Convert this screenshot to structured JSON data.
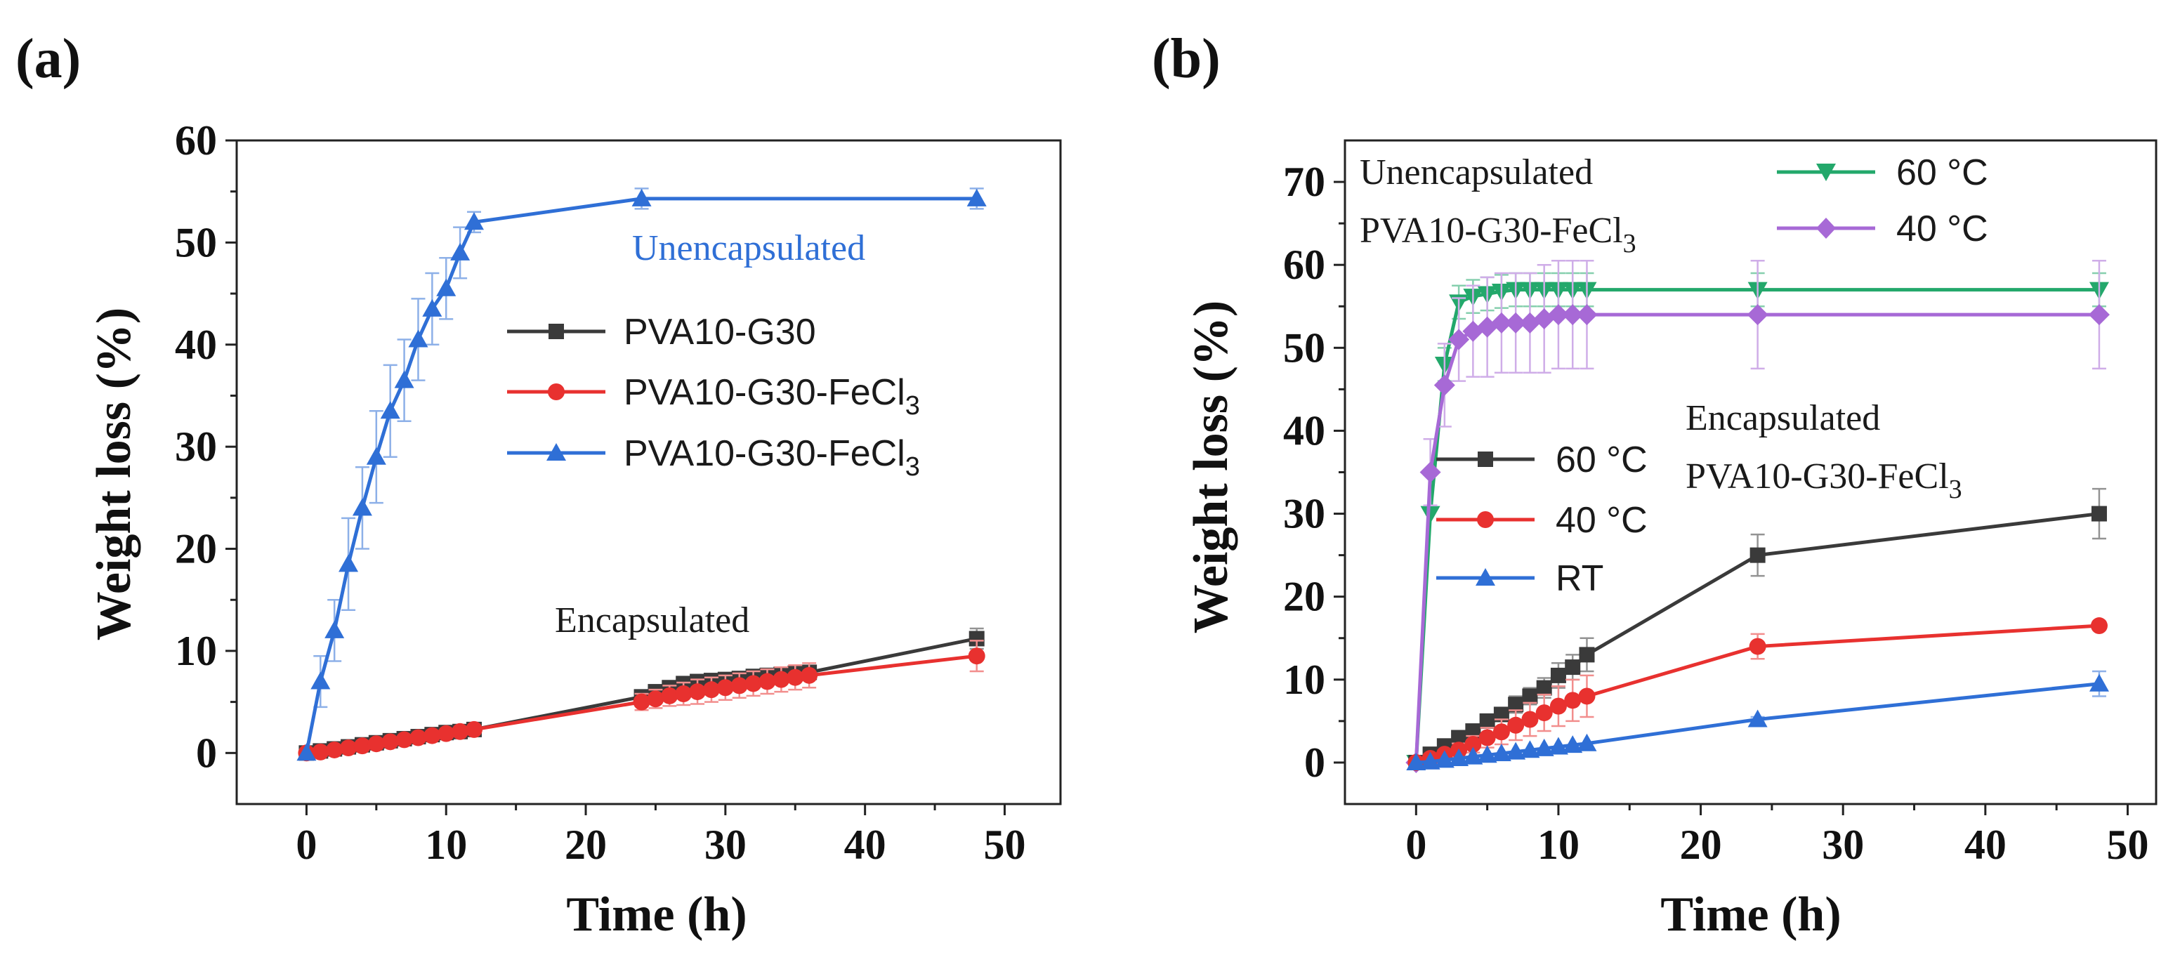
{
  "chart_data": [
    {
      "panel_label": "(a)",
      "type": "line",
      "xlabel": "Time (h)",
      "ylabel": "Weight loss (%)",
      "xlim": [
        -5,
        54
      ],
      "ylim": [
        -5,
        60
      ],
      "xticks": [
        0,
        10,
        20,
        30,
        40,
        50
      ],
      "yticks": [
        0,
        10,
        20,
        30,
        40,
        50,
        60
      ],
      "grid": false,
      "legend_position": "center-right",
      "annotations": [
        {
          "text": "Unencapsulated",
          "color": "#2f6fd6"
        },
        {
          "text": "Encapsulated",
          "color": "#1a1a1a"
        }
      ],
      "series": [
        {
          "name": "PVA10-G30",
          "color": "#3a3a3a",
          "marker": "square",
          "x": [
            0,
            1,
            2,
            3,
            4,
            5,
            6,
            7,
            8,
            9,
            10,
            11,
            12,
            24,
            25,
            26,
            27,
            28,
            29,
            30,
            31,
            32,
            33,
            34,
            35,
            36,
            48
          ],
          "y": [
            0,
            0.2,
            0.4,
            0.6,
            0.8,
            1.0,
            1.2,
            1.4,
            1.6,
            1.8,
            2.0,
            2.1,
            2.3,
            5.5,
            6.0,
            6.4,
            6.8,
            7.0,
            7.1,
            7.2,
            7.3,
            7.5,
            7.6,
            7.7,
            7.8,
            7.9,
            11.2
          ],
          "err": [
            0,
            0,
            0,
            0,
            0,
            0,
            0,
            0,
            0,
            0,
            0,
            0,
            0,
            0.6,
            0.6,
            0.6,
            0.6,
            0.6,
            0.6,
            0.6,
            0.6,
            0.6,
            0.6,
            0.6,
            0.6,
            0.6,
            1.0
          ]
        },
        {
          "name": "PVA10-G30-FeCl3",
          "legend_text": "PVA10-G30-FeCl",
          "legend_sub": "3",
          "color": "#e8312f",
          "marker": "circle",
          "x": [
            0,
            1,
            2,
            3,
            4,
            5,
            6,
            7,
            8,
            9,
            10,
            11,
            12,
            24,
            25,
            26,
            27,
            28,
            29,
            30,
            31,
            32,
            33,
            34,
            35,
            36,
            48
          ],
          "y": [
            0,
            0.1,
            0.3,
            0.5,
            0.7,
            0.9,
            1.1,
            1.3,
            1.5,
            1.7,
            1.9,
            2.1,
            2.3,
            5.0,
            5.3,
            5.6,
            5.8,
            6.0,
            6.2,
            6.4,
            6.6,
            6.8,
            7.0,
            7.2,
            7.4,
            7.6,
            9.5
          ],
          "err": [
            0,
            0,
            0,
            0,
            0,
            0,
            0,
            0,
            0,
            0,
            0,
            0,
            0,
            0.8,
            0.9,
            1.0,
            1.1,
            1.2,
            1.2,
            1.2,
            1.2,
            1.2,
            1.2,
            1.2,
            1.2,
            1.2,
            1.5
          ]
        },
        {
          "name": "PVA10-G30-FeCl3 (unencapsulated)",
          "legend_text": "PVA10-G30-FeCl",
          "legend_sub": "3",
          "color": "#2f6fd6",
          "marker": "triangle-up",
          "x": [
            0,
            1,
            2,
            3,
            4,
            5,
            6,
            7,
            8,
            9,
            10,
            11,
            12,
            24,
            48
          ],
          "y": [
            0,
            7,
            12,
            18.5,
            24,
            29,
            33.5,
            36.5,
            40.5,
            43.5,
            45.5,
            49,
            52,
            54.3,
            54.3
          ],
          "err": [
            0,
            2.5,
            3,
            4.5,
            4,
            4.5,
            4.5,
            4,
            4,
            3.5,
            3,
            2.5,
            1,
            1,
            1
          ]
        }
      ]
    },
    {
      "panel_label": "(b)",
      "type": "line",
      "xlabel": "Time (h)",
      "ylabel": "Weight loss (%)",
      "xlim": [
        -5,
        52
      ],
      "ylim": [
        -5,
        75
      ],
      "xticks": [
        0,
        10,
        20,
        30,
        40,
        50
      ],
      "yticks": [
        0,
        10,
        20,
        30,
        40,
        50,
        60,
        70
      ],
      "grid": false,
      "legend_position": "top-right and center-left",
      "annotations": [
        {
          "text": "Unencapsulated",
          "color": "#1a1a1a"
        },
        {
          "text": "PVA10-G30-FeCl",
          "sub": "3",
          "color": "#1a1a1a"
        },
        {
          "text": "Encapsulated",
          "color": "#1a1a1a"
        },
        {
          "text": "PVA10-G30-FeCl",
          "sub": "3",
          "color": "#1a1a1a"
        }
      ],
      "series": [
        {
          "name": "60 °C",
          "group": "Unencapsulated",
          "color": "#23a86b",
          "marker": "triangle-down",
          "x": [
            0,
            1,
            2,
            3,
            4,
            5,
            6,
            7,
            8,
            9,
            10,
            11,
            12,
            24,
            48
          ],
          "y": [
            0,
            30,
            48,
            55.5,
            56.2,
            56.5,
            56.8,
            57,
            57,
            57,
            57,
            57,
            57,
            57,
            57
          ],
          "err": [
            0,
            0,
            2,
            2,
            2,
            2,
            2,
            2,
            2,
            2,
            2,
            2,
            2,
            2,
            2
          ]
        },
        {
          "name": "40 °C",
          "group": "Unencapsulated",
          "color": "#a769d6",
          "marker": "diamond",
          "x": [
            0,
            1,
            2,
            3,
            4,
            5,
            6,
            7,
            8,
            9,
            10,
            11,
            12,
            24,
            48
          ],
          "y": [
            0,
            35,
            45.5,
            51,
            52,
            52.5,
            53,
            53,
            53,
            53.5,
            54,
            54,
            54,
            54,
            54
          ],
          "err": [
            0,
            4,
            5,
            5,
            5.5,
            6,
            6,
            6,
            6,
            6.5,
            6.5,
            6.5,
            6.5,
            6.5,
            6.5
          ]
        },
        {
          "name": "60 °C",
          "group": "Encapsulated",
          "color": "#3a3a3a",
          "marker": "square",
          "x": [
            0,
            1,
            2,
            3,
            4,
            5,
            6,
            7,
            8,
            9,
            10,
            11,
            12,
            24,
            48
          ],
          "y": [
            0,
            1,
            2,
            3,
            3.8,
            5,
            5.8,
            7,
            8,
            9,
            10.5,
            11.5,
            13,
            25,
            30
          ],
          "err": [
            0,
            0.5,
            0.5,
            0.5,
            0.6,
            0.8,
            0.8,
            1,
            1,
            1.2,
            1.5,
            1.5,
            2,
            2.5,
            3
          ]
        },
        {
          "name": "40 °C",
          "group": "Encapsulated",
          "color": "#e8312f",
          "marker": "circle",
          "x": [
            0,
            1,
            2,
            3,
            4,
            5,
            6,
            7,
            8,
            9,
            10,
            11,
            12,
            24,
            48
          ],
          "y": [
            0,
            0.5,
            1,
            1.5,
            2.2,
            3,
            3.7,
            4.5,
            5.2,
            6,
            6.8,
            7.5,
            8,
            14,
            16.5
          ],
          "err": [
            0,
            0.5,
            0.5,
            0.8,
            1,
            1.2,
            1.5,
            1.8,
            2,
            2.2,
            2.4,
            2.5,
            2.5,
            1.5,
            0.5
          ]
        },
        {
          "name": "RT",
          "group": "Encapsulated",
          "color": "#2f6fd6",
          "marker": "triangle-up",
          "x": [
            0,
            1,
            2,
            3,
            4,
            5,
            6,
            7,
            8,
            9,
            10,
            11,
            12,
            24,
            48
          ],
          "y": [
            0,
            0.1,
            0.3,
            0.5,
            0.7,
            0.9,
            1.1,
            1.3,
            1.5,
            1.7,
            1.9,
            2.1,
            2.3,
            5.2,
            9.5
          ],
          "err": [
            0,
            0,
            0,
            0,
            0,
            0,
            0,
            0,
            0,
            0,
            0,
            0,
            0,
            0.3,
            1.5
          ]
        }
      ]
    }
  ]
}
